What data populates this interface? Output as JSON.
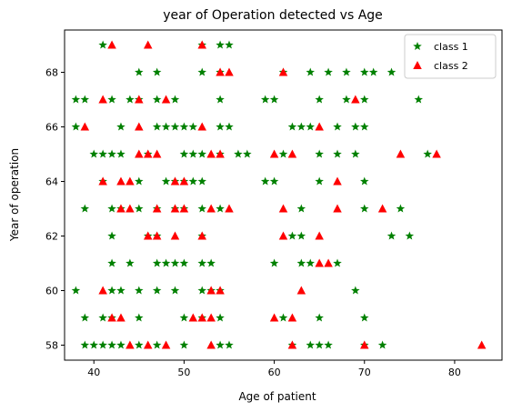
{
  "chart_data": {
    "type": "scatter",
    "title": "year of Operation detected vs Age",
    "xlabel": "Age of patient",
    "ylabel": "Year of operation",
    "xlim": [
      36.75,
      85.25
    ],
    "ylim": [
      57.45,
      69.55
    ],
    "xticks": [
      40,
      50,
      60,
      70,
      80
    ],
    "yticks": [
      58,
      60,
      62,
      64,
      66,
      68
    ],
    "grid": false,
    "legend_position": "top-right",
    "series": [
      {
        "name": "class 1",
        "color": "#008000",
        "marker": "star",
        "points": [
          [
            41,
            69
          ],
          [
            52,
            69
          ],
          [
            54,
            69
          ],
          [
            55,
            69
          ],
          [
            45,
            68
          ],
          [
            47,
            68
          ],
          [
            52,
            68
          ],
          [
            54,
            68
          ],
          [
            61,
            68
          ],
          [
            64,
            68
          ],
          [
            66,
            68
          ],
          [
            68,
            68
          ],
          [
            70,
            68
          ],
          [
            71,
            68
          ],
          [
            73,
            68
          ],
          [
            38,
            67
          ],
          [
            39,
            67
          ],
          [
            42,
            67
          ],
          [
            44,
            67
          ],
          [
            45,
            67
          ],
          [
            47,
            67
          ],
          [
            49,
            67
          ],
          [
            54,
            67
          ],
          [
            59,
            67
          ],
          [
            60,
            67
          ],
          [
            65,
            67
          ],
          [
            68,
            67
          ],
          [
            70,
            67
          ],
          [
            76,
            67
          ],
          [
            38,
            66
          ],
          [
            43,
            66
          ],
          [
            47,
            66
          ],
          [
            48,
            66
          ],
          [
            49,
            66
          ],
          [
            50,
            66
          ],
          [
            51,
            66
          ],
          [
            54,
            66
          ],
          [
            55,
            66
          ],
          [
            62,
            66
          ],
          [
            63,
            66
          ],
          [
            64,
            66
          ],
          [
            67,
            66
          ],
          [
            69,
            66
          ],
          [
            70,
            66
          ],
          [
            40,
            65
          ],
          [
            41,
            65
          ],
          [
            42,
            65
          ],
          [
            43,
            65
          ],
          [
            46,
            65
          ],
          [
            50,
            65
          ],
          [
            51,
            65
          ],
          [
            52,
            65
          ],
          [
            54,
            65
          ],
          [
            56,
            65
          ],
          [
            57,
            65
          ],
          [
            61,
            65
          ],
          [
            65,
            65
          ],
          [
            67,
            65
          ],
          [
            69,
            65
          ],
          [
            77,
            65
          ],
          [
            41,
            64
          ],
          [
            45,
            64
          ],
          [
            48,
            64
          ],
          [
            49,
            64
          ],
          [
            50,
            64
          ],
          [
            51,
            64
          ],
          [
            52,
            64
          ],
          [
            59,
            64
          ],
          [
            60,
            64
          ],
          [
            65,
            64
          ],
          [
            70,
            64
          ],
          [
            39,
            63
          ],
          [
            42,
            63
          ],
          [
            43,
            63
          ],
          [
            45,
            63
          ],
          [
            47,
            63
          ],
          [
            49,
            63
          ],
          [
            50,
            63
          ],
          [
            52,
            63
          ],
          [
            54,
            63
          ],
          [
            63,
            63
          ],
          [
            70,
            63
          ],
          [
            74,
            63
          ],
          [
            42,
            62
          ],
          [
            46,
            62
          ],
          [
            47,
            62
          ],
          [
            52,
            62
          ],
          [
            62,
            62
          ],
          [
            63,
            62
          ],
          [
            73,
            62
          ],
          [
            75,
            62
          ],
          [
            42,
            61
          ],
          [
            44,
            61
          ],
          [
            47,
            61
          ],
          [
            48,
            61
          ],
          [
            49,
            61
          ],
          [
            50,
            61
          ],
          [
            52,
            61
          ],
          [
            53,
            61
          ],
          [
            60,
            61
          ],
          [
            63,
            61
          ],
          [
            64,
            61
          ],
          [
            67,
            61
          ],
          [
            38,
            60
          ],
          [
            42,
            60
          ],
          [
            43,
            60
          ],
          [
            45,
            60
          ],
          [
            47,
            60
          ],
          [
            49,
            60
          ],
          [
            52,
            60
          ],
          [
            53,
            60
          ],
          [
            54,
            60
          ],
          [
            69,
            60
          ],
          [
            39,
            59
          ],
          [
            41,
            59
          ],
          [
            42,
            59
          ],
          [
            45,
            59
          ],
          [
            50,
            59
          ],
          [
            52,
            59
          ],
          [
            54,
            59
          ],
          [
            61,
            59
          ],
          [
            65,
            59
          ],
          [
            70,
            59
          ],
          [
            39,
            58
          ],
          [
            40,
            58
          ],
          [
            41,
            58
          ],
          [
            42,
            58
          ],
          [
            43,
            58
          ],
          [
            45,
            58
          ],
          [
            47,
            58
          ],
          [
            50,
            58
          ],
          [
            54,
            58
          ],
          [
            55,
            58
          ],
          [
            62,
            58
          ],
          [
            64,
            58
          ],
          [
            65,
            58
          ],
          [
            66,
            58
          ],
          [
            70,
            58
          ],
          [
            72,
            58
          ]
        ]
      },
      {
        "name": "class 2",
        "color": "#ff0000",
        "marker": "triangle",
        "points": [
          [
            42,
            69
          ],
          [
            46,
            69
          ],
          [
            52,
            69
          ],
          [
            54,
            68
          ],
          [
            55,
            68
          ],
          [
            61,
            68
          ],
          [
            41,
            67
          ],
          [
            45,
            67
          ],
          [
            48,
            67
          ],
          [
            69,
            67
          ],
          [
            39,
            66
          ],
          [
            45,
            66
          ],
          [
            52,
            66
          ],
          [
            65,
            66
          ],
          [
            45,
            65
          ],
          [
            46,
            65
          ],
          [
            47,
            65
          ],
          [
            53,
            65
          ],
          [
            54,
            65
          ],
          [
            60,
            65
          ],
          [
            62,
            65
          ],
          [
            74,
            65
          ],
          [
            78,
            65
          ],
          [
            41,
            64
          ],
          [
            43,
            64
          ],
          [
            44,
            64
          ],
          [
            49,
            64
          ],
          [
            50,
            64
          ],
          [
            67,
            64
          ],
          [
            43,
            63
          ],
          [
            44,
            63
          ],
          [
            47,
            63
          ],
          [
            49,
            63
          ],
          [
            50,
            63
          ],
          [
            53,
            63
          ],
          [
            55,
            63
          ],
          [
            61,
            63
          ],
          [
            67,
            63
          ],
          [
            72,
            63
          ],
          [
            46,
            62
          ],
          [
            47,
            62
          ],
          [
            49,
            62
          ],
          [
            52,
            62
          ],
          [
            61,
            62
          ],
          [
            65,
            62
          ],
          [
            65,
            61
          ],
          [
            66,
            61
          ],
          [
            41,
            60
          ],
          [
            53,
            60
          ],
          [
            54,
            60
          ],
          [
            63,
            60
          ],
          [
            42,
            59
          ],
          [
            43,
            59
          ],
          [
            51,
            59
          ],
          [
            52,
            59
          ],
          [
            53,
            59
          ],
          [
            60,
            59
          ],
          [
            62,
            59
          ],
          [
            44,
            58
          ],
          [
            46,
            58
          ],
          [
            48,
            58
          ],
          [
            53,
            58
          ],
          [
            62,
            58
          ],
          [
            70,
            58
          ],
          [
            83,
            58
          ]
        ]
      }
    ]
  }
}
